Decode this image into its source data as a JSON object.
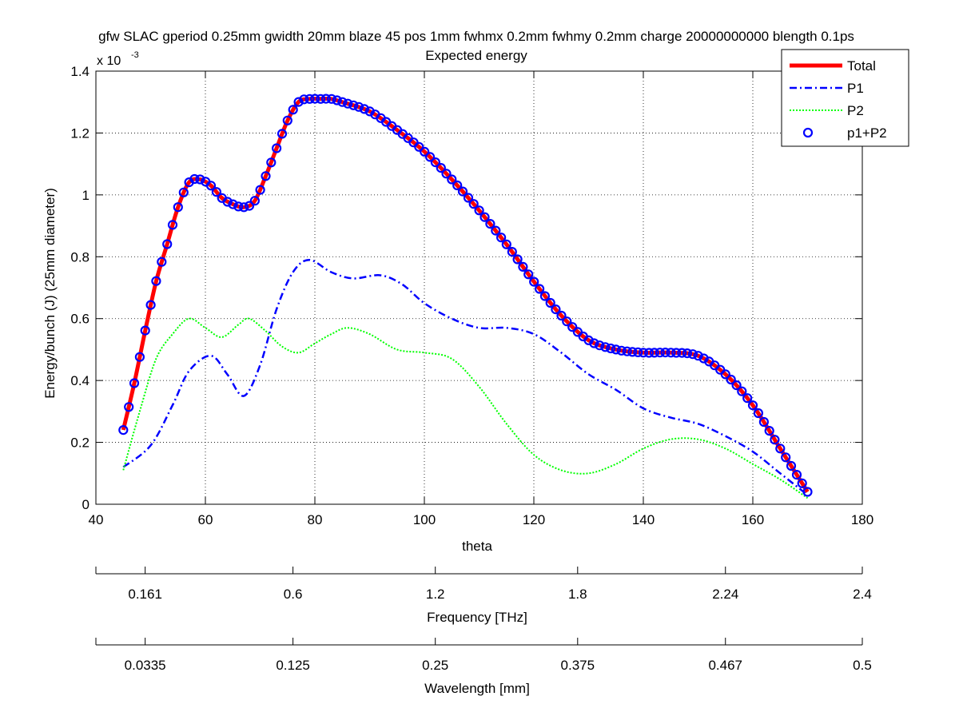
{
  "chart_data": {
    "type": "line",
    "title": "gfw SLAC gperiod 0.25mm gwidth 20mm blaze 45 pos 1mm fwhmx 0.2mm fwhmy 0.2mm charge 20000000000 blength 0.1ps",
    "subtitle": "Expected energy",
    "xlabel": "theta",
    "ylabel": "Energy/bunch (J)  (25mm diameter)",
    "y_exponent_label": "x 10",
    "y_exponent_power": "-3",
    "xlim": [
      40,
      180
    ],
    "ylim": [
      0,
      0.0014
    ],
    "x_ticks": [
      40,
      60,
      80,
      100,
      120,
      140,
      160,
      180
    ],
    "y_ticks": [
      0,
      0.2,
      0.4,
      0.6,
      0.8,
      1,
      1.2,
      1.4
    ],
    "y_tick_scale": 0.001,
    "grid": true,
    "legend_position": "top-right",
    "legend": [
      {
        "label": "Total",
        "color": "#ff0000",
        "style": "solid"
      },
      {
        "label": "P1",
        "color": "#0000ff",
        "style": "dashdot"
      },
      {
        "label": "P2",
        "color": "#00ff00",
        "style": "dotted"
      },
      {
        "label": "p1+P2",
        "color": "#0000ff",
        "style": "markers"
      }
    ],
    "series": [
      {
        "name": "Total",
        "color": "#ff0000",
        "x": [
          45,
          47,
          49,
          51,
          53,
          55,
          57,
          59,
          61,
          63,
          65,
          67,
          69,
          71,
          73,
          75,
          77,
          79,
          81,
          83,
          85,
          90,
          95,
          100,
          105,
          110,
          115,
          120,
          125,
          130,
          135,
          140,
          145,
          150,
          155,
          160,
          165,
          170
        ],
        "y": [
          0.00024,
          0.00039,
          0.00056,
          0.00072,
          0.00084,
          0.00096,
          0.00104,
          0.00105,
          0.00103,
          0.00099,
          0.00097,
          0.00096,
          0.00098,
          0.00106,
          0.00115,
          0.00124,
          0.0013,
          0.00131,
          0.00131,
          0.00131,
          0.0013,
          0.00127,
          0.00121,
          0.00114,
          0.00105,
          0.00095,
          0.00084,
          0.00072,
          0.00061,
          0.00053,
          0.0005,
          0.00049,
          0.00049,
          0.00048,
          0.00042,
          0.00032,
          0.00018,
          4e-05
        ]
      },
      {
        "name": "P1",
        "color": "#0000ff",
        "x": [
          45,
          50,
          54,
          57,
          61,
          64,
          67,
          70,
          73,
          76,
          79,
          83,
          87,
          92,
          96,
          100,
          105,
          110,
          115,
          120,
          125,
          130,
          135,
          140,
          145,
          150,
          155,
          160,
          165,
          170
        ],
        "y": [
          0.00012,
          0.00019,
          0.00032,
          0.00043,
          0.00048,
          0.00042,
          0.00035,
          0.00045,
          0.00063,
          0.00075,
          0.00079,
          0.00075,
          0.00073,
          0.00074,
          0.00071,
          0.00065,
          0.0006,
          0.00057,
          0.00057,
          0.00055,
          0.00049,
          0.00042,
          0.00037,
          0.00031,
          0.00028,
          0.00026,
          0.00022,
          0.00017,
          0.0001,
          3e-05
        ]
      },
      {
        "name": "P2",
        "color": "#00ff00",
        "x": [
          45,
          48,
          51,
          54,
          57,
          60,
          63,
          66,
          68,
          71,
          74,
          77,
          80,
          83,
          86,
          90,
          95,
          100,
          105,
          110,
          115,
          120,
          125,
          130,
          135,
          140,
          145,
          150,
          155,
          160,
          165,
          170
        ],
        "y": [
          0.00011,
          0.0003,
          0.00047,
          0.00055,
          0.0006,
          0.00057,
          0.00054,
          0.00058,
          0.0006,
          0.00056,
          0.00051,
          0.00049,
          0.00052,
          0.00055,
          0.00057,
          0.00055,
          0.0005,
          0.00049,
          0.00047,
          0.00038,
          0.00026,
          0.00016,
          0.00011,
          0.0001,
          0.00013,
          0.00018,
          0.00021,
          0.00021,
          0.00018,
          0.00013,
          8e-05,
          2e-05
        ]
      },
      {
        "name": "p1+P2",
        "color": "#0000ff",
        "x": [
          45,
          47,
          49,
          51,
          53,
          55,
          57,
          59,
          61,
          63,
          65,
          67,
          69,
          71,
          73,
          75,
          77,
          79,
          81,
          83,
          85,
          90,
          95,
          100,
          105,
          110,
          115,
          120,
          125,
          130,
          135,
          140,
          145,
          150,
          155,
          160,
          165,
          170
        ],
        "y": [
          0.00024,
          0.00039,
          0.00056,
          0.00072,
          0.00084,
          0.00096,
          0.00104,
          0.00105,
          0.00103,
          0.00099,
          0.00097,
          0.00096,
          0.00098,
          0.00106,
          0.00115,
          0.00124,
          0.0013,
          0.00131,
          0.00131,
          0.00131,
          0.0013,
          0.00127,
          0.00121,
          0.00114,
          0.00105,
          0.00095,
          0.00084,
          0.00072,
          0.00061,
          0.00053,
          0.0005,
          0.00049,
          0.00049,
          0.00048,
          0.00042,
          0.00032,
          0.00018,
          4e-05
        ]
      }
    ],
    "secondary_axes": [
      {
        "label": "Frequency [THz]",
        "ticks": [
          {
            "theta": 40,
            "label": ""
          },
          {
            "theta": 49,
            "label": "0.161"
          },
          {
            "theta": 76,
            "label": "0.6"
          },
          {
            "theta": 102,
            "label": "1.2"
          },
          {
            "theta": 128,
            "label": "1.8"
          },
          {
            "theta": 155,
            "label": "2.24"
          },
          {
            "theta": 180,
            "label": "2.4"
          }
        ]
      },
      {
        "label": "Wavelength [mm]",
        "ticks": [
          {
            "theta": 40,
            "label": ""
          },
          {
            "theta": 49,
            "label": "0.0335"
          },
          {
            "theta": 76,
            "label": "0.125"
          },
          {
            "theta": 102,
            "label": "0.25"
          },
          {
            "theta": 128,
            "label": "0.375"
          },
          {
            "theta": 155,
            "label": "0.467"
          },
          {
            "theta": 180,
            "label": "0.5"
          }
        ]
      }
    ]
  }
}
